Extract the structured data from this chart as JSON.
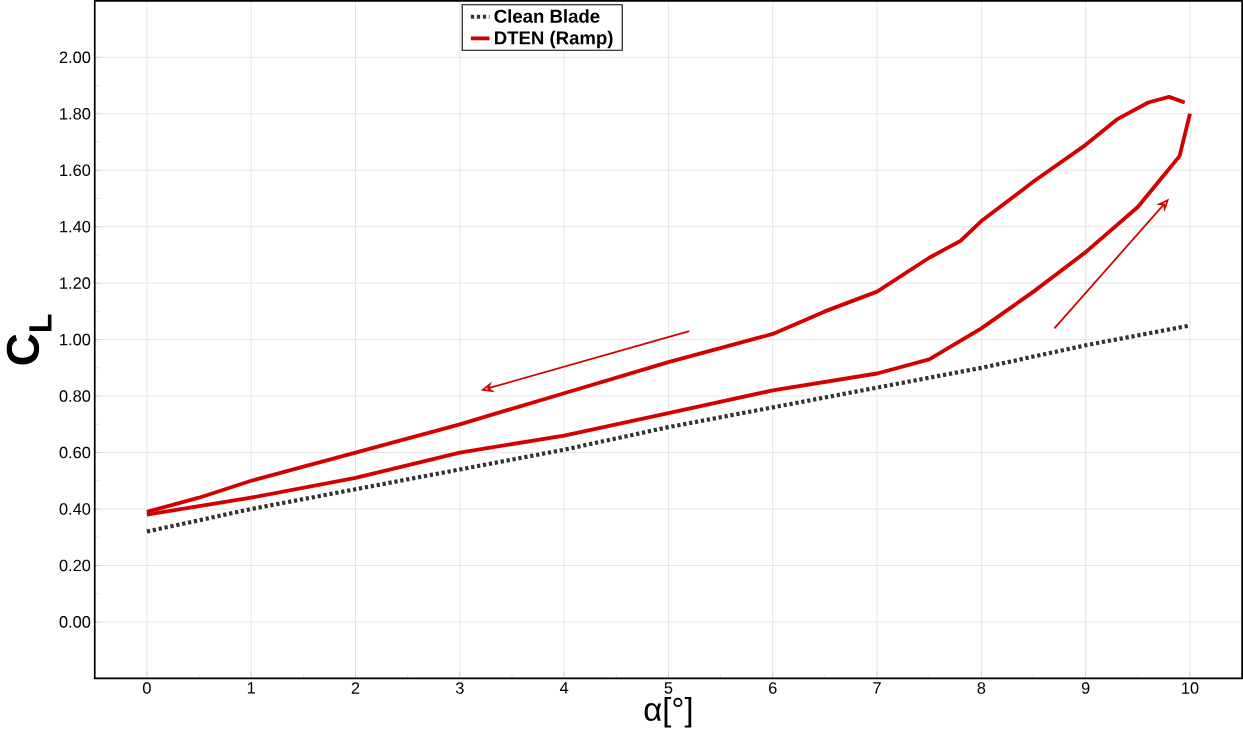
{
  "chart_data": {
    "type": "line",
    "xlabel": "α[°]",
    "ylabel": "C$_{L}$",
    "xlim": [
      -0.5,
      10.5
    ],
    "ylim": [
      -0.2,
      2.2
    ],
    "xticks": [
      0,
      1,
      2,
      3,
      4,
      5,
      6,
      7,
      8,
      9,
      10
    ],
    "yticks": [
      {
        "value": 0,
        "label": "0.00"
      },
      {
        "value": 0.2,
        "label": "0.20"
      },
      {
        "value": 0.4,
        "label": "0.40"
      },
      {
        "value": 0.6,
        "label": "0.60"
      },
      {
        "value": 0.8,
        "label": "0.80"
      },
      {
        "value": 1.0,
        "label": "1.00"
      },
      {
        "value": 1.2,
        "label": "1.20"
      },
      {
        "value": 1.4,
        "label": "1.40"
      },
      {
        "value": 1.6,
        "label": "1.60"
      },
      {
        "value": 1.8,
        "label": "1.80"
      },
      {
        "value": 2.0,
        "label": "2.00"
      }
    ],
    "grid": true,
    "legend": "top",
    "marker": "none",
    "series": [
      {
        "name": "Clean Blade",
        "color": "#333333",
        "line_style": "dotted",
        "x": [
          0,
          1,
          2,
          3,
          4,
          5,
          6,
          7,
          8,
          9,
          10
        ],
        "values": [
          0.32,
          0.4,
          0.47,
          0.54,
          0.61,
          0.69,
          0.76,
          0.83,
          0.9,
          0.98,
          1.05
        ]
      },
      {
        "name": "DTEN (Ramp)",
        "color": "#d40000",
        "line_style": "solid",
        "x": [
          0,
          0.5,
          1,
          2,
          3,
          4,
          5,
          6,
          7,
          7.5,
          8,
          8.5,
          9,
          9.5,
          9.9,
          10
        ],
        "values": [
          0.38,
          0.41,
          0.44,
          0.51,
          0.6,
          0.66,
          0.74,
          0.82,
          0.88,
          0.93,
          1.04,
          1.17,
          1.31,
          1.47,
          1.65,
          1.8
        ]
      },
      {
        "color": "#d40000",
        "line_style": "solid",
        "x": [
          9.95,
          9.8,
          9.6,
          9.3,
          9,
          8.5,
          8,
          7.8,
          7.5,
          7,
          6.5,
          6,
          5,
          4,
          3,
          2,
          1,
          0.5,
          0
        ],
        "values": [
          1.84,
          1.86,
          1.84,
          1.78,
          1.69,
          1.56,
          1.42,
          1.35,
          1.29,
          1.17,
          1.1,
          1.02,
          0.92,
          0.81,
          0.7,
          0.6,
          0.5,
          0.44,
          0.39
        ]
      }
    ]
  }
}
